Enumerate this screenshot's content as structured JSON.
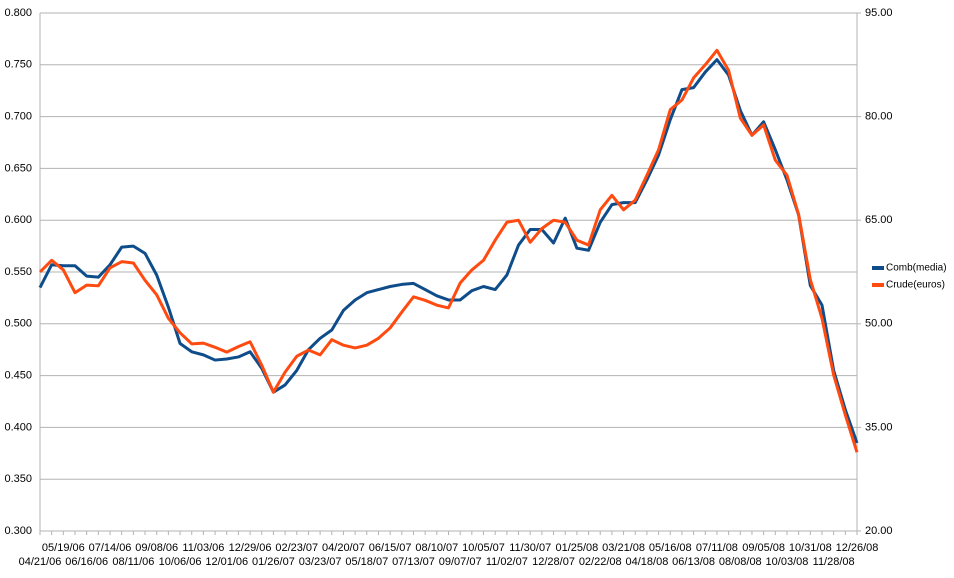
{
  "chart_data": {
    "type": "line",
    "categories": [
      "04/21/06",
      null,
      "05/19/06",
      null,
      "06/16/06",
      null,
      "07/14/06",
      null,
      "08/11/06",
      null,
      "09/08/06",
      null,
      "10/06/06",
      null,
      "11/03/06",
      null,
      "12/01/06",
      null,
      "12/29/06",
      null,
      "01/26/07",
      null,
      "02/23/07",
      null,
      "03/23/07",
      null,
      "04/20/07",
      null,
      "05/18/07",
      null,
      "06/15/07",
      null,
      "07/13/07",
      null,
      "08/10/07",
      null,
      "09/07/07",
      null,
      "10/05/07",
      null,
      "11/02/07",
      null,
      "11/30/07",
      null,
      "12/28/07",
      null,
      "01/25/08",
      null,
      "02/22/08",
      null,
      "03/21/08",
      null,
      "04/18/08",
      null,
      "05/16/08",
      null,
      "06/13/08",
      null,
      "07/11/08",
      null,
      "08/08/08",
      null,
      "09/05/08",
      null,
      "10/03/08",
      null,
      "10/31/08",
      null,
      "11/28/08",
      null,
      "12/26/08"
    ],
    "series": [
      {
        "name": "Comb(media)",
        "color": "#0e4c8a",
        "values": [
          0.535,
          0.557,
          0.556,
          0.556,
          0.546,
          0.545,
          0.557,
          0.574,
          0.575,
          0.568,
          0.547,
          0.516,
          0.481,
          0.473,
          0.47,
          0.465,
          0.466,
          0.468,
          0.473,
          0.457,
          0.434,
          0.441,
          0.455,
          0.475,
          0.486,
          0.494,
          0.513,
          0.523,
          0.53,
          0.533,
          0.536,
          0.538,
          0.539,
          0.533,
          0.527,
          0.523,
          0.523,
          0.532,
          0.536,
          0.533,
          0.547,
          0.576,
          0.591,
          0.591,
          0.578,
          0.602,
          0.573,
          0.571,
          0.598,
          0.615,
          0.617,
          0.617,
          0.639,
          0.663,
          0.697,
          0.726,
          0.728,
          0.743,
          0.755,
          0.74,
          0.706,
          0.682,
          0.695,
          0.668,
          0.639,
          0.605,
          0.537,
          0.518,
          0.455,
          0.417,
          0.385
        ]
      },
      {
        "name": "Crude(euros)",
        "color": "#ff4a10",
        "axis": "y2",
        "values": [
          57.5,
          59.2,
          57.8,
          54.5,
          55.6,
          55.5,
          58.1,
          59.0,
          58.8,
          56.3,
          54.2,
          50.8,
          48.7,
          47.1,
          47.2,
          46.6,
          45.9,
          46.7,
          47.4,
          44.0,
          40.1,
          43.0,
          45.3,
          46.2,
          45.5,
          47.7,
          46.9,
          46.5,
          46.9,
          47.9,
          49.4,
          51.7,
          53.9,
          53.4,
          52.7,
          52.3,
          55.9,
          57.8,
          59.2,
          62.1,
          64.7,
          65.0,
          61.8,
          63.8,
          65.0,
          64.7,
          62.1,
          61.4,
          66.5,
          68.6,
          66.5,
          67.9,
          71.5,
          75.2,
          81.0,
          82.4,
          85.6,
          87.5,
          89.6,
          86.7,
          79.8,
          77.3,
          78.8,
          73.7,
          71.5,
          65.8,
          56.4,
          50.8,
          42.6,
          36.8,
          31.4
        ]
      }
    ],
    "ylim": [
      0.3,
      0.8
    ],
    "yticks": [
      {
        "value": 0.3,
        "label": "0.300"
      },
      {
        "value": 0.35,
        "label": "0.350"
      },
      {
        "value": 0.4,
        "label": "0.400"
      },
      {
        "value": 0.45,
        "label": "0.450"
      },
      {
        "value": 0.5,
        "label": "0.500"
      },
      {
        "value": 0.55,
        "label": "0.550"
      },
      {
        "value": 0.6,
        "label": "0.600"
      },
      {
        "value": 0.65,
        "label": "0.650"
      },
      {
        "value": 0.7,
        "label": "0.700"
      },
      {
        "value": 0.75,
        "label": "0.750"
      },
      {
        "value": 0.8,
        "label": "0.800"
      }
    ],
    "y2lim": [
      20,
      95
    ],
    "y2ticks": [
      {
        "value": 20,
        "label": "20.00"
      },
      {
        "value": 35,
        "label": "35.00"
      },
      {
        "value": 50,
        "label": "50.00"
      },
      {
        "value": 65,
        "label": "65.00"
      },
      {
        "value": 80,
        "label": "80.00"
      },
      {
        "value": 95,
        "label": "95.00"
      }
    ],
    "grid": true,
    "legend": "right"
  }
}
